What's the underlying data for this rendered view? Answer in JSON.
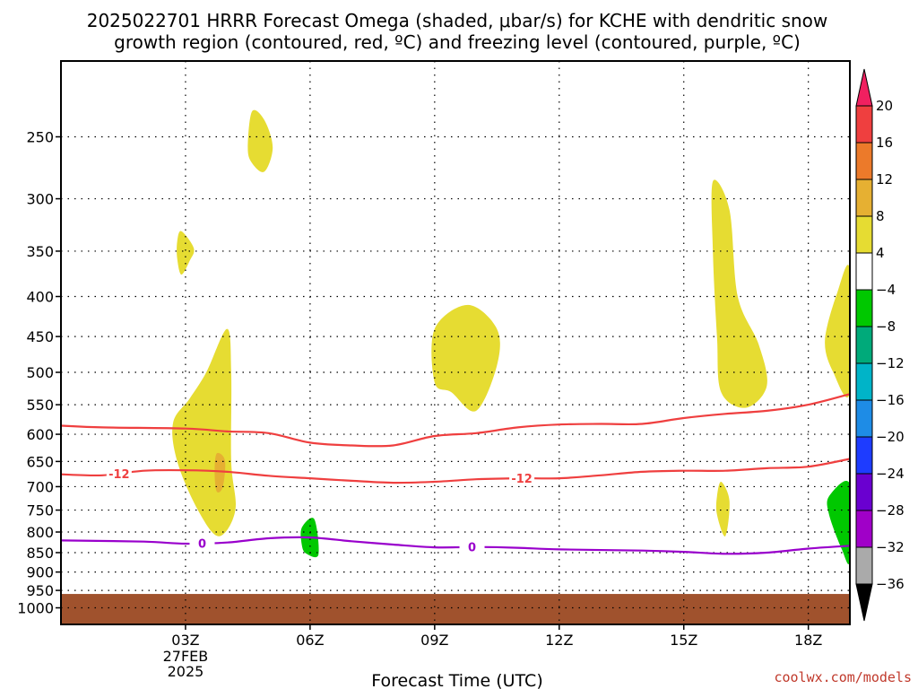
{
  "chart_data": {
    "type": "heatmap",
    "title": [
      "2025022701 HRRR Forecast Omega (shaded, μbar/s) for KCHE with dendritic snow",
      "growth region (contoured, red, ºC) and freezing level (contoured, purple, ºC)"
    ],
    "xlabel": "Forecast Time (UTC)",
    "ylabel": "",
    "x_ticks": [
      "03Z",
      "06Z",
      "09Z",
      "12Z",
      "15Z",
      "18Z"
    ],
    "x_tick_hours": [
      3,
      6,
      9,
      12,
      15,
      18
    ],
    "x_date_label": [
      "27FEB",
      "2025"
    ],
    "xlim": [
      0,
      19
    ],
    "y_ticks": [
      250,
      300,
      350,
      400,
      450,
      500,
      550,
      600,
      650,
      700,
      750,
      800,
      850,
      900,
      950,
      1000
    ],
    "ylim": [
      1050,
      200
    ],
    "y_scale": "log",
    "grid": true,
    "colorbar": {
      "levels": [
        20,
        16,
        12,
        8,
        4,
        -4,
        -8,
        -12,
        -16,
        -20,
        -24,
        -28,
        -32,
        -36
      ],
      "colors": [
        "#f02060",
        "#ef3f3f",
        "#ec7a2a",
        "#e6b032",
        "#e6dc32",
        "#ffffff",
        "#00c800",
        "#00aa7a",
        "#00b4c8",
        "#1e8ce6",
        "#1e3cff",
        "#6a00d0",
        "#a000c8",
        "#aaaaaa",
        "#000000"
      ]
    },
    "contours": [
      {
        "color": "#ef3f3f",
        "label": "-12",
        "points": [
          [
            0,
            675
          ],
          [
            1,
            677
          ],
          [
            2,
            668
          ],
          [
            3,
            667
          ],
          [
            4,
            670
          ],
          [
            5,
            678
          ],
          [
            6,
            683
          ],
          [
            7,
            688
          ],
          [
            8,
            692
          ],
          [
            9,
            690
          ],
          [
            10,
            685
          ],
          [
            11,
            683
          ],
          [
            12,
            683
          ],
          [
            13,
            677
          ],
          [
            14,
            670
          ],
          [
            15,
            668
          ],
          [
            16,
            668
          ],
          [
            17,
            663
          ],
          [
            18,
            660
          ],
          [
            19,
            645
          ]
        ]
      },
      {
        "color": "#ef3f3f",
        "label": "",
        "points": [
          [
            0,
            585
          ],
          [
            1,
            588
          ],
          [
            3,
            590
          ],
          [
            4,
            595
          ],
          [
            5,
            598
          ],
          [
            6,
            615
          ],
          [
            7,
            620
          ],
          [
            8,
            620
          ],
          [
            9,
            603
          ],
          [
            10,
            598
          ],
          [
            11,
            588
          ],
          [
            12,
            583
          ],
          [
            13,
            582
          ],
          [
            14,
            582
          ],
          [
            15,
            572
          ],
          [
            16,
            565
          ],
          [
            17,
            560
          ],
          [
            18,
            550
          ],
          [
            19,
            533
          ]
        ]
      },
      {
        "color": "#9900cc",
        "label": "0",
        "points": [
          [
            0,
            820
          ],
          [
            2,
            823
          ],
          [
            3,
            828
          ],
          [
            4,
            825
          ],
          [
            5,
            815
          ],
          [
            6,
            813
          ],
          [
            7,
            822
          ],
          [
            8,
            830
          ],
          [
            9,
            837
          ],
          [
            10,
            836
          ],
          [
            11,
            838
          ],
          [
            12,
            842
          ],
          [
            14,
            845
          ],
          [
            15,
            848
          ],
          [
            16,
            853
          ],
          [
            17,
            850
          ],
          [
            18,
            840
          ],
          [
            19,
            833
          ]
        ]
      }
    ],
    "regions": [
      {
        "color": "#e6dc32",
        "points": [
          [
            4.6,
            232
          ],
          [
            4.9,
            238
          ],
          [
            5.1,
            258
          ],
          [
            4.9,
            277
          ],
          [
            4.6,
            270
          ],
          [
            4.5,
            258
          ]
        ]
      },
      {
        "color": "#e6dc32",
        "points": [
          [
            2.9,
            330
          ],
          [
            3.2,
            347
          ],
          [
            3.1,
            360
          ],
          [
            2.9,
            375
          ],
          [
            2.8,
            358
          ],
          [
            2.8,
            340
          ]
        ]
      },
      {
        "color": "#e6dc32",
        "points": [
          [
            4.0,
            440
          ],
          [
            4.1,
            500
          ],
          [
            4.1,
            650
          ],
          [
            4.2,
            750
          ],
          [
            3.8,
            810
          ],
          [
            3.3,
            750
          ],
          [
            2.8,
            650
          ],
          [
            2.7,
            580
          ],
          [
            3.1,
            540
          ],
          [
            3.5,
            500
          ]
        ]
      },
      {
        "color": "#e6b032",
        "points": [
          [
            3.75,
            635
          ],
          [
            3.95,
            648
          ],
          [
            3.9,
            700
          ],
          [
            3.75,
            710
          ],
          [
            3.7,
            670
          ]
        ]
      },
      {
        "color": "#e6dc32",
        "points": [
          [
            9.0,
            440
          ],
          [
            9.8,
            410
          ],
          [
            10.5,
            440
          ],
          [
            10.5,
            490
          ],
          [
            10.0,
            560
          ],
          [
            9.4,
            530
          ],
          [
            9.0,
            515
          ]
        ]
      },
      {
        "color": "#e6dc32",
        "points": [
          [
            15.7,
            285
          ],
          [
            16.1,
            310
          ],
          [
            16.3,
            400
          ],
          [
            16.8,
            460
          ],
          [
            17.0,
            520
          ],
          [
            16.5,
            555
          ],
          [
            15.9,
            530
          ],
          [
            15.8,
            450
          ],
          [
            15.7,
            350
          ]
        ]
      },
      {
        "color": "#e6dc32",
        "points": [
          [
            15.9,
            690
          ],
          [
            16.1,
            730
          ],
          [
            16.0,
            810
          ],
          [
            15.8,
            760
          ],
          [
            15.8,
            720
          ]
        ]
      },
      {
        "color": "#e6dc32",
        "points": [
          [
            19.0,
            370
          ],
          [
            19.0,
            530
          ],
          [
            18.6,
            500
          ],
          [
            18.4,
            455
          ],
          [
            18.7,
            395
          ]
        ]
      },
      {
        "color": "#00c800",
        "points": [
          [
            19.0,
            695
          ],
          [
            19.0,
            870
          ],
          [
            18.8,
            840
          ],
          [
            18.5,
            760
          ],
          [
            18.5,
            720
          ]
        ]
      },
      {
        "color": "#00c800",
        "points": [
          [
            5.8,
            790
          ],
          [
            6.1,
            770
          ],
          [
            6.2,
            855
          ],
          [
            5.9,
            852
          ],
          [
            5.8,
            830
          ]
        ]
      }
    ],
    "ground": {
      "color": "#a0522d",
      "top_pressure": 960
    }
  },
  "credit": "coolwx.com/models"
}
